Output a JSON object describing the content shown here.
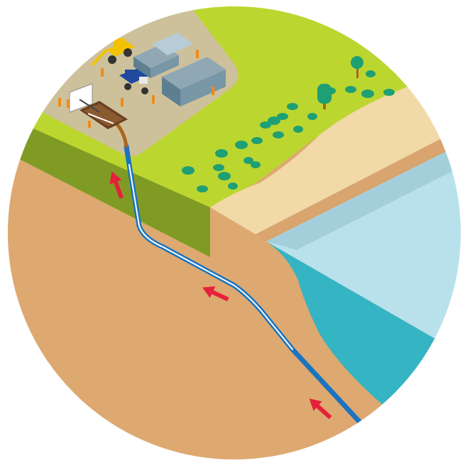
{
  "diagram": {
    "type": "isometric-cutaway",
    "theme": "horizontal directional drilling: pipeline drilled from a land-side worksite under the shore to the sea",
    "colors": {
      "grass": "#bcd630",
      "soil_side": "#7f9b24",
      "soil": "#dda970",
      "sand": "#f1d9a8",
      "sand_edge": "#d9a46e",
      "sea_surface": "#b8e1ec",
      "sea_band": "#a4cfda",
      "sea_cutaway": "#35b4c3",
      "worksite_ground": "#cdc19b",
      "pipe": "#1b74c0",
      "pipe_highlight": "#ffffff",
      "arrow": "#e5203a",
      "tree_round": "#1f9f74",
      "tree_trunk": "#a9651f"
    },
    "arrows": [
      {
        "direction": "up"
      },
      {
        "direction": "up-left"
      },
      {
        "direction": "up-left"
      }
    ],
    "worksite": {
      "vehicles": [
        "excavator-icon",
        "dump-truck-icon"
      ],
      "buildings": [
        "container-office-icon",
        "container-office-icon",
        "container-office-icon"
      ],
      "workers": 8,
      "equipment": [
        "drilling-rig-icon",
        "entry-pit-icon"
      ]
    }
  }
}
